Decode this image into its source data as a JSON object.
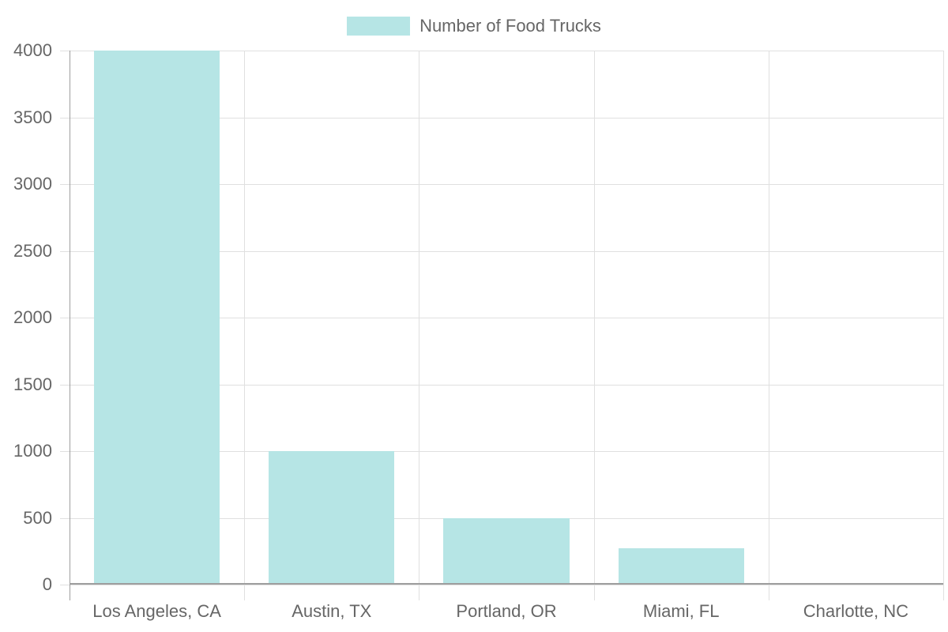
{
  "chart_data": {
    "type": "bar",
    "title": "",
    "xlabel": "",
    "ylabel": "",
    "categories": [
      "Los Angeles, CA",
      "Austin, TX",
      "Portland, OR",
      "Miami, FL",
      "Charlotte, NC"
    ],
    "series": [
      {
        "name": "Number of Food Trucks",
        "values": [
          4000,
          1000,
          500,
          275,
          0
        ],
        "color": "#b6e5e5"
      }
    ],
    "ylim": [
      0,
      4000
    ],
    "yticks": [
      0,
      500,
      1000,
      1500,
      2000,
      2500,
      3000,
      3500,
      4000
    ],
    "grid": true,
    "legend_position": "top"
  },
  "legend": {
    "label": "Number of Food Trucks",
    "color": "#b6e5e5"
  },
  "yticks": [
    "4000",
    "3500",
    "3000",
    "2500",
    "2000",
    "1500",
    "1000",
    "500",
    "0"
  ],
  "categories": [
    "Los Angeles, CA",
    "Austin, TX",
    "Portland, OR",
    "Miami, FL",
    "Charlotte, NC"
  ]
}
